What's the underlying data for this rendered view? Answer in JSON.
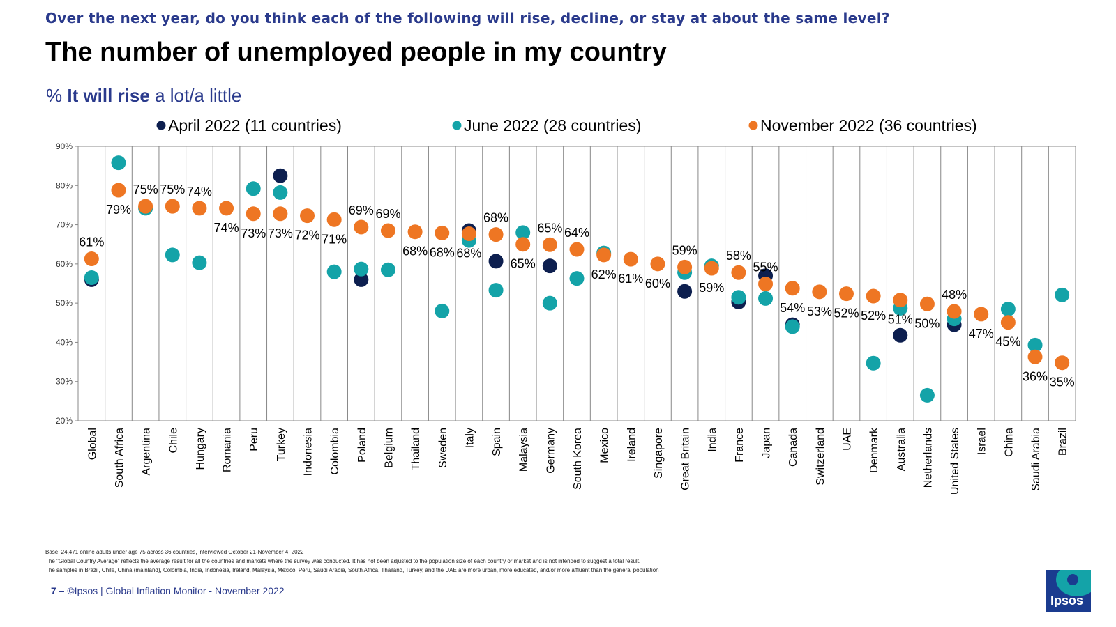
{
  "header": {
    "question": "Over the next year, do you think each of the following will rise, decline, or stay at about the same level?",
    "title": "The number of unemployed people in my country",
    "subtitle_prefix": "% ",
    "subtitle_bold": "It will rise",
    "subtitle_suffix": " a lot/a little"
  },
  "footnotes": {
    "base": "Base: 24,471 online adults under age 75 across 36 countries, interviewed October 21-November 4, 2022",
    "note1": "The \"Global Country Average\" reflects the average result for all the countries and markets where the survey was conducted. It has not been adjusted to the population size of each country or market and is not intended to suggest a total result.",
    "note2": "The samples in Brazil, Chile, China (mainland), Colombia, India, Indonesia, Ireland, Malaysia, Mexico, Peru, Saudi Arabia, South Africa, Thailand, Turkey, and the UAE are more urban, more educated, and/or more affluent than the general population"
  },
  "footer": {
    "page": "7 –",
    "source": "©Ipsos | Global Inflation Monitor - November 2022"
  },
  "logo": {
    "text": "Ipsos"
  },
  "chart_data": {
    "type": "scatter",
    "ylim": [
      20,
      90
    ],
    "yticks": [
      20,
      30,
      40,
      50,
      60,
      70,
      80,
      90
    ],
    "ytick_suffix": "%",
    "grid": "vertical",
    "legend_position": "top",
    "categories": [
      "Global",
      "South Africa",
      "Argentina",
      "Chile",
      "Hungary",
      "Romania",
      "Peru",
      "Turkey",
      "Indonesia",
      "Colombia",
      "Poland",
      "Belgium",
      "Thailand",
      "Sweden",
      "Italy",
      "Spain",
      "Malaysia",
      "Germany",
      "South Korea",
      "Mexico",
      "Ireland",
      "Singapore",
      "Great Britain",
      "India",
      "France",
      "Japan",
      "Canada",
      "Switzerland",
      "UAE",
      "Denmark",
      "Australia",
      "Netherlands",
      "United States",
      "Israel",
      "China",
      "Saudi Arabia",
      "Brazil"
    ],
    "series": [
      {
        "name": "April 2022 (11 countries)",
        "color": "#0d1f4f",
        "values": [
          56,
          null,
          null,
          null,
          null,
          null,
          null,
          82.5,
          null,
          null,
          56,
          null,
          null,
          null,
          68.5,
          60.7,
          null,
          59.5,
          null,
          null,
          null,
          null,
          53,
          null,
          50.3,
          57,
          44.5,
          null,
          null,
          null,
          41.8,
          null,
          44.5,
          null,
          null,
          null,
          null
        ]
      },
      {
        "name": "June 2022 (28 countries)",
        "color": "#14a3a8",
        "values": [
          56.5,
          85.8,
          74.2,
          62.3,
          60.3,
          null,
          79.2,
          78.2,
          null,
          58,
          58.7,
          58.5,
          null,
          48,
          66,
          53.3,
          68,
          50,
          56.3,
          62.8,
          null,
          null,
          57.8,
          59.5,
          51.5,
          51.2,
          44,
          null,
          null,
          34.7,
          48.7,
          26.5,
          46,
          null,
          48.5,
          39.3,
          52.1
        ]
      },
      {
        "name": "November 2022 (36 countries)",
        "color": "#ee7623",
        "values": [
          61.3,
          78.8,
          74.7,
          74.7,
          74.2,
          74.2,
          72.8,
          72.8,
          72.3,
          71.3,
          69.4,
          68.5,
          68.2,
          67.9,
          67.7,
          67.5,
          65,
          64.9,
          63.7,
          62.3,
          61.2,
          60,
          59.2,
          58.9,
          57.8,
          54.9,
          53.8,
          52.9,
          52.4,
          51.8,
          50.8,
          49.8,
          47.9,
          47.2,
          45.1,
          36.3,
          34.8
        ]
      }
    ],
    "data_labels": [
      "61%",
      "79%",
      "75%",
      "75%",
      "74%",
      "74%",
      "73%",
      "73%",
      "72%",
      "71%",
      "69%",
      "69%",
      "68%",
      "68%",
      "68%",
      "68%",
      "65%",
      "65%",
      "64%",
      "62%",
      "61%",
      "60%",
      "59%",
      "59%",
      "58%",
      "55%",
      "54%",
      "53%",
      "52%",
      "52%",
      "51%",
      "50%",
      "48%",
      "47%",
      "45%",
      "36%",
      "35%"
    ]
  }
}
